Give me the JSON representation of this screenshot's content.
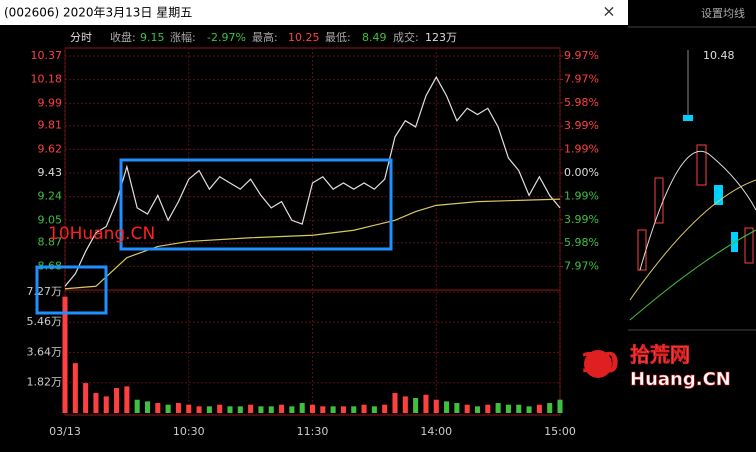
{
  "window": {
    "title": "(002606) 2020年3月13日 星期五",
    "close_button": "×"
  },
  "info": {
    "label": "分时",
    "close_label": "收盘:",
    "close": "9.15",
    "change_label": "涨幅:",
    "change": "-2.97%",
    "high_label": "最高:",
    "high": "10.25",
    "low_label": "最低:",
    "low": "8.49",
    "volume_label": "成交:",
    "volume": "123万"
  },
  "chart_data": [
    {
      "type": "line",
      "xlim": [
        0,
        240
      ],
      "xticks": [
        {
          "value": 0,
          "label": "03/13"
        },
        {
          "value": 60,
          "label": "10:30"
        },
        {
          "value": 120,
          "label": "11:30"
        },
        {
          "value": 180,
          "label": "14:00"
        },
        {
          "value": 240,
          "label": "15:00"
        }
      ],
      "ylim": [
        8.49,
        10.37
      ],
      "yticks": [
        10.37,
        10.18,
        9.99,
        9.81,
        9.62,
        9.43,
        9.24,
        9.05,
        8.87,
        8.68
      ],
      "y2lim": [
        -9.97,
        9.97
      ],
      "y2ticks": [
        {
          "value": 9.97,
          "label": "9.97%"
        },
        {
          "value": 7.97,
          "label": "7.97%"
        },
        {
          "value": 5.98,
          "label": "5.98%"
        },
        {
          "value": 3.99,
          "label": "3.99%"
        },
        {
          "value": 1.99,
          "label": "1.99%"
        },
        {
          "value": 0,
          "label": "0.00%"
        },
        {
          "value": -1.99,
          "label": "1.99%"
        },
        {
          "value": -3.99,
          "label": "3.99%"
        },
        {
          "value": -5.98,
          "label": "5.98%"
        },
        {
          "value": -7.97,
          "label": "7.97%"
        }
      ],
      "grid": true,
      "series": [
        {
          "color": "#e0e0e0",
          "x": [
            0,
            5,
            10,
            15,
            20,
            25,
            30,
            35,
            40,
            45,
            50,
            55,
            60,
            65,
            70,
            75,
            80,
            85,
            90,
            95,
            100,
            105,
            110,
            115,
            120,
            125,
            130,
            135,
            140,
            145,
            150,
            155,
            160,
            165,
            170,
            175,
            180,
            185,
            190,
            195,
            200,
            205,
            210,
            215,
            220,
            225,
            230,
            235,
            240
          ],
          "values": [
            8.52,
            8.62,
            8.8,
            8.95,
            9.0,
            9.2,
            9.48,
            9.15,
            9.1,
            9.25,
            9.05,
            9.2,
            9.38,
            9.45,
            9.3,
            9.4,
            9.35,
            9.3,
            9.38,
            9.25,
            9.15,
            9.2,
            9.05,
            9.02,
            9.35,
            9.4,
            9.3,
            9.35,
            9.3,
            9.35,
            9.3,
            9.38,
            9.72,
            9.85,
            9.8,
            10.05,
            10.2,
            10.05,
            9.85,
            9.95,
            9.9,
            9.95,
            9.8,
            9.55,
            9.45,
            9.25,
            9.4,
            9.25,
            9.15
          ]
        },
        {
          "color": "#d8c860",
          "x": [
            0,
            15,
            30,
            45,
            60,
            90,
            120,
            140,
            160,
            170,
            180,
            200,
            220,
            240
          ],
          "values": [
            8.5,
            8.52,
            8.75,
            8.84,
            8.88,
            8.91,
            8.93,
            8.97,
            9.05,
            9.12,
            9.17,
            9.2,
            9.21,
            9.22
          ]
        }
      ]
    },
    {
      "type": "bar",
      "xlim": [
        0,
        240
      ],
      "ylim": [
        0,
        7.4
      ],
      "yticks": [
        {
          "value": 7.27,
          "label": "7.27万"
        },
        {
          "value": 5.46,
          "label": "5.46万"
        },
        {
          "value": 3.64,
          "label": "3.64万"
        },
        {
          "value": 1.82,
          "label": "1.82万"
        }
      ],
      "grid": true,
      "up_color": "#ff4040",
      "down_color": "#40c040",
      "x": [
        0,
        5,
        10,
        15,
        20,
        25,
        30,
        35,
        40,
        45,
        50,
        55,
        60,
        65,
        70,
        75,
        80,
        85,
        90,
        95,
        100,
        105,
        110,
        115,
        120,
        125,
        130,
        135,
        140,
        145,
        150,
        155,
        160,
        165,
        170,
        175,
        180,
        185,
        190,
        195,
        200,
        205,
        210,
        215,
        220,
        225,
        230,
        235,
        240
      ],
      "values": [
        7.0,
        3.0,
        1.8,
        1.2,
        1.0,
        1.5,
        1.6,
        0.8,
        0.7,
        0.6,
        0.5,
        0.6,
        0.5,
        0.4,
        0.4,
        0.5,
        0.4,
        0.4,
        0.5,
        0.4,
        0.4,
        0.5,
        0.4,
        0.6,
        0.5,
        0.4,
        0.4,
        0.4,
        0.4,
        0.5,
        0.4,
        0.5,
        1.2,
        1.0,
        0.9,
        1.1,
        0.8,
        0.7,
        0.6,
        0.5,
        0.4,
        0.5,
        0.6,
        0.5,
        0.5,
        0.4,
        0.5,
        0.6,
        0.8
      ]
    }
  ],
  "side_panel": {
    "button": "设置均线",
    "high": "10.48"
  },
  "watermarks": {
    "text": "10Huang.CN",
    "logo_number": "10",
    "logo_name": "拾荒网",
    "logo_domain": "Huang.CN"
  }
}
